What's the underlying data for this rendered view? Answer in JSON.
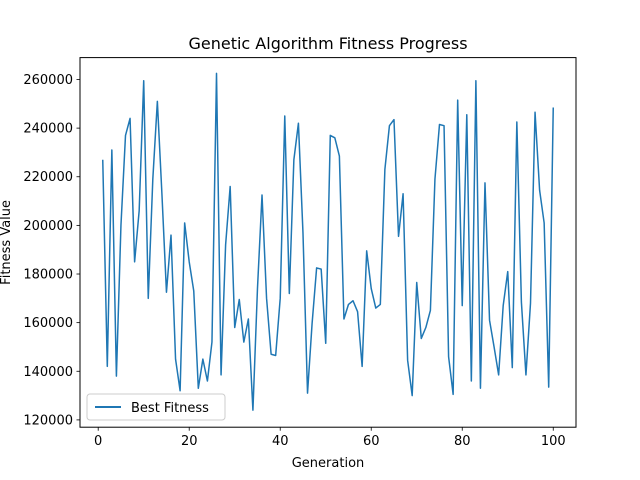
{
  "chart_data": {
    "type": "line",
    "title": "Genetic Algorithm Fitness Progress",
    "xlabel": "Generation",
    "ylabel": "Fitness Value",
    "xlim": [
      -4,
      105
    ],
    "ylim": [
      117000,
      269000
    ],
    "xticks": [
      0,
      20,
      40,
      60,
      80,
      100
    ],
    "yticks": [
      120000,
      140000,
      160000,
      180000,
      200000,
      220000,
      240000,
      260000
    ],
    "xtick_labels": [
      "0",
      "20",
      "40",
      "60",
      "80",
      "100"
    ],
    "ytick_labels": [
      "120000",
      "140000",
      "160000",
      "180000",
      "200000",
      "220000",
      "240000",
      "260000"
    ],
    "grid": false,
    "legend": {
      "position": "lower left"
    },
    "series": [
      {
        "name": "Best Fitness",
        "color": "#1f77b4",
        "x": [
          1,
          2,
          3,
          4,
          5,
          6,
          7,
          8,
          9,
          10,
          11,
          12,
          13,
          14,
          15,
          16,
          17,
          18,
          19,
          20,
          21,
          22,
          23,
          24,
          25,
          26,
          27,
          28,
          29,
          30,
          31,
          32,
          33,
          34,
          35,
          36,
          37,
          38,
          39,
          40,
          41,
          42,
          43,
          44,
          45,
          46,
          47,
          48,
          49,
          50,
          51,
          52,
          53,
          54,
          55,
          56,
          57,
          58,
          59,
          60,
          61,
          62,
          63,
          64,
          65,
          66,
          67,
          68,
          69,
          70,
          71,
          72,
          73,
          74,
          75,
          76,
          77,
          78,
          79,
          80,
          81,
          82,
          83,
          84,
          85,
          86,
          87,
          88,
          89,
          90,
          91,
          92,
          93,
          94,
          95,
          96,
          97,
          98,
          99,
          100
        ],
        "y": [
          227000,
          142000,
          231000,
          138000,
          200000,
          237000,
          244000,
          185000,
          206000,
          259500,
          170000,
          219000,
          251000,
          213000,
          172500,
          196000,
          145000,
          132000,
          201000,
          185000,
          173000,
          133000,
          145000,
          136000,
          152000,
          262500,
          138500,
          192000,
          216000,
          158000,
          169500,
          152000,
          161500,
          124000,
          174000,
          212500,
          170000,
          147000,
          146500,
          170000,
          245000,
          172000,
          227000,
          242000,
          197000,
          131000,
          159500,
          182500,
          182000,
          151500,
          237000,
          236000,
          228500,
          161500,
          167500,
          169000,
          164500,
          142000,
          189500,
          174000,
          166000,
          167500,
          223000,
          241000,
          243500,
          195500,
          213000,
          144500,
          130000,
          176500,
          153500,
          158000,
          165000,
          219000,
          241500,
          241000,
          146000,
          130500,
          251500,
          167000,
          245500,
          136000,
          259500,
          133000,
          217500,
          161000,
          150000,
          138500,
          167000,
          181000,
          141500,
          242500,
          168500,
          138500,
          168000,
          246500,
          214500,
          201000,
          133500,
          248500
        ]
      }
    ]
  }
}
